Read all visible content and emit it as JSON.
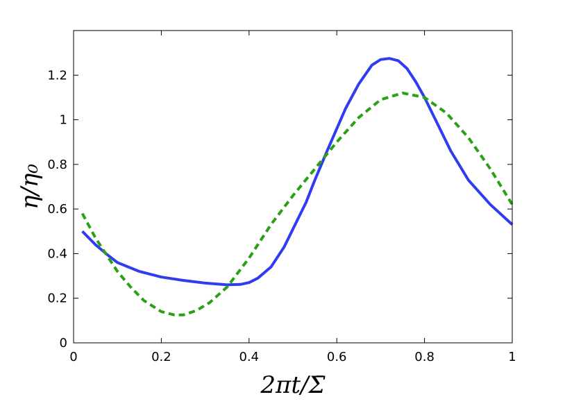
{
  "chart_data": {
    "type": "line",
    "xlabel": "2πt/Σ̄",
    "ylabel": "η/η₀",
    "xlim": [
      0,
      1
    ],
    "ylim": [
      0,
      1.4
    ],
    "xticks": [
      "0",
      "0.2",
      "0.4",
      "0.6",
      "0.8",
      "1"
    ],
    "yticks": [
      "0",
      "0.2",
      "0.4",
      "0.6",
      "0.8",
      "1",
      "1.2"
    ],
    "grid": false,
    "legend": "none",
    "series": [
      {
        "color": "#2f3cf0",
        "style": "solid",
        "x": [
          0.02,
          0.05,
          0.08,
          0.1,
          0.15,
          0.2,
          0.25,
          0.3,
          0.35,
          0.38,
          0.4,
          0.42,
          0.45,
          0.48,
          0.5,
          0.53,
          0.55,
          0.58,
          0.6,
          0.62,
          0.65,
          0.68,
          0.7,
          0.72,
          0.74,
          0.76,
          0.78,
          0.8,
          0.83,
          0.86,
          0.9,
          0.95,
          1.0
        ],
        "y": [
          0.5,
          0.44,
          0.39,
          0.36,
          0.32,
          0.295,
          0.28,
          0.268,
          0.26,
          0.262,
          0.27,
          0.29,
          0.34,
          0.43,
          0.51,
          0.63,
          0.73,
          0.87,
          0.96,
          1.05,
          1.16,
          1.245,
          1.27,
          1.275,
          1.265,
          1.23,
          1.17,
          1.1,
          0.98,
          0.86,
          0.73,
          0.62,
          0.53
        ]
      },
      {
        "color": "#2ca014",
        "style": "dashed",
        "x": [
          0.02,
          0.05,
          0.08,
          0.1,
          0.13,
          0.16,
          0.2,
          0.23,
          0.25,
          0.28,
          0.31,
          0.35,
          0.4,
          0.45,
          0.5,
          0.55,
          0.6,
          0.65,
          0.7,
          0.75,
          0.8,
          0.85,
          0.9,
          0.95,
          1.0
        ],
        "y": [
          0.58,
          0.47,
          0.38,
          0.32,
          0.25,
          0.19,
          0.14,
          0.125,
          0.125,
          0.145,
          0.18,
          0.25,
          0.38,
          0.53,
          0.66,
          0.78,
          0.9,
          1.01,
          1.09,
          1.12,
          1.1,
          1.03,
          0.92,
          0.78,
          0.62
        ]
      }
    ]
  }
}
